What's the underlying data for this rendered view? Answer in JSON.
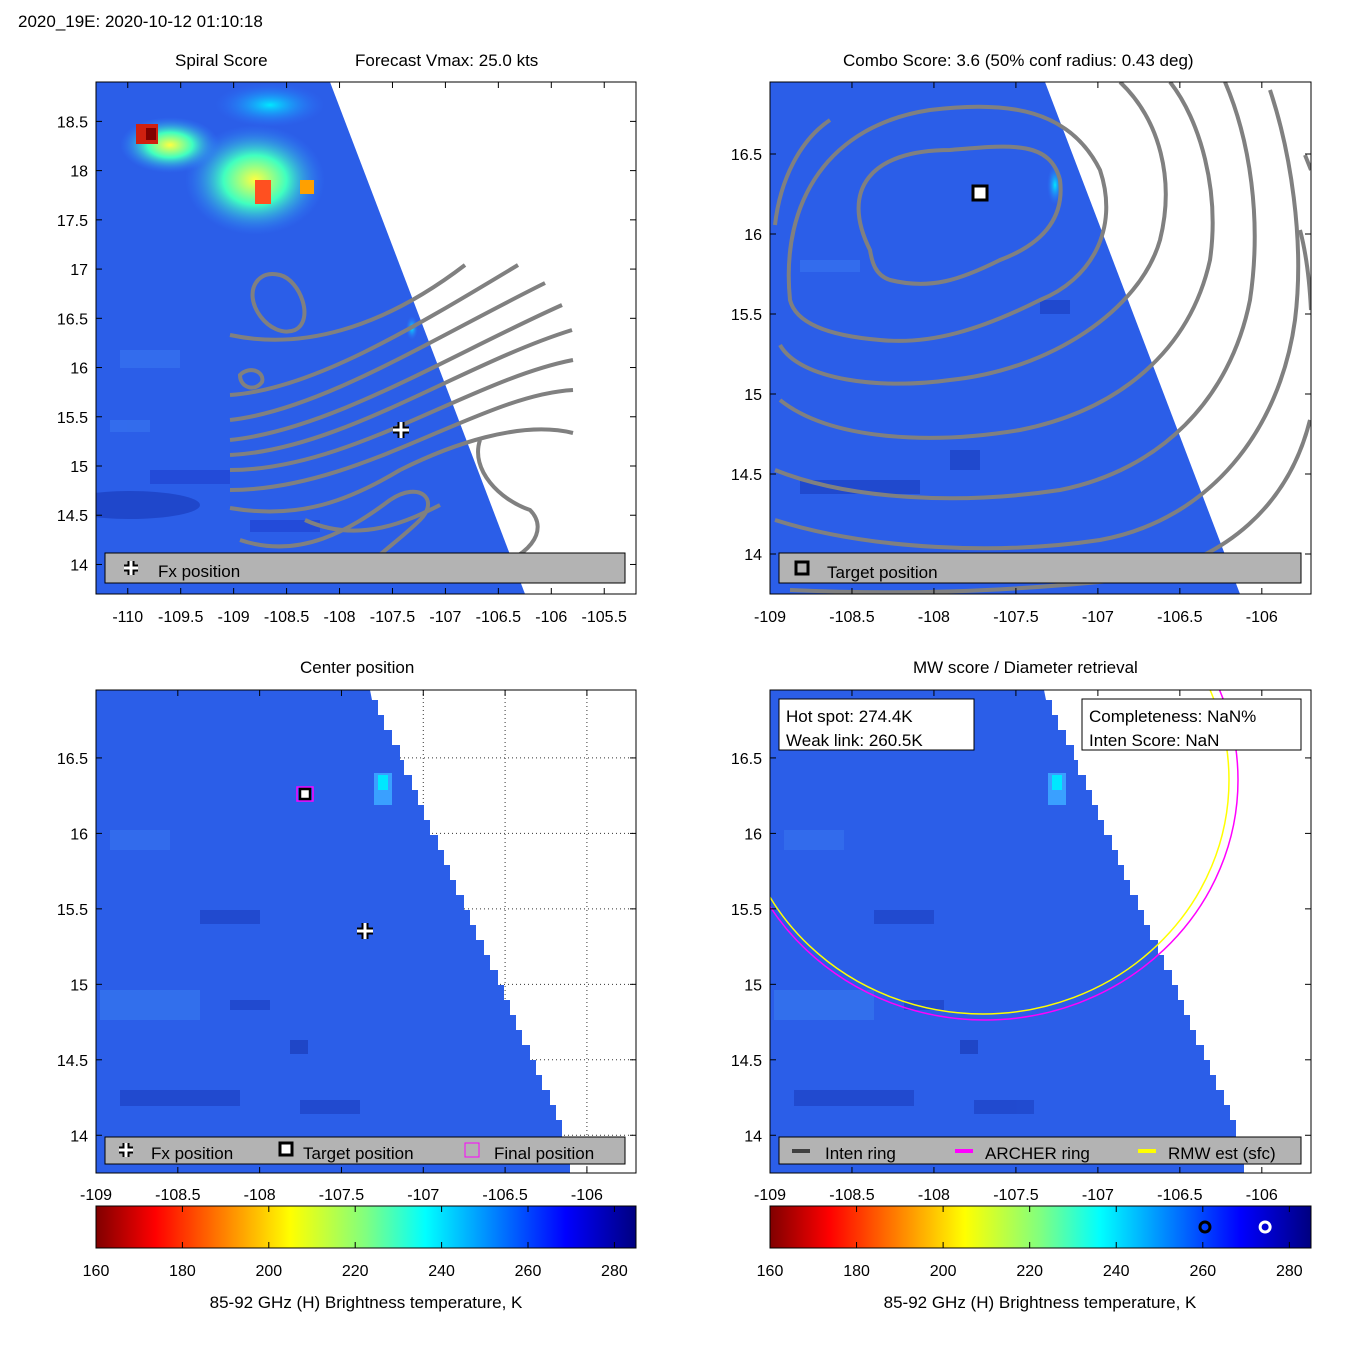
{
  "figure_title": "2020_19E: 2020-10-12 01:10:18",
  "colorbar_label": "85-92 GHz (H) Brightness temperature, K",
  "colors": {
    "swath_blue": "#1f4fe6",
    "contour_gray": "#808080",
    "legend_bg": "#b3b3b3",
    "archer_ring": "#ff00ff",
    "rmw_ring": "#ffff00",
    "inten_ring": "#404040"
  },
  "chart_data": [
    {
      "id": "spiral",
      "type": "heatmap",
      "title_left": "Spiral Score",
      "title_right": "Forecast Vmax: 25.0 kts",
      "xlim": [
        -110.3,
        -105.2
      ],
      "ylim": [
        13.7,
        18.9
      ],
      "xticks": [
        -110,
        -109.5,
        -109,
        -108.5,
        -108,
        -107.5,
        -107,
        -106.5,
        -106,
        -105.5
      ],
      "xtick_labels": [
        "-110",
        "-109.5",
        "-109",
        "-108.5",
        "-108",
        "-107.5",
        "-107",
        "-106.5",
        "-106",
        "-105.5"
      ],
      "yticks": [
        14,
        14.5,
        15,
        15.5,
        16,
        16.5,
        17,
        17.5,
        18,
        18.5
      ],
      "ytick_labels": [
        "14",
        "14.5",
        "15",
        "15.5",
        "16",
        "16.5",
        "17",
        "17.5",
        "18",
        "18.5"
      ],
      "fx_position": {
        "lon": -107.4,
        "lat": 15.33
      },
      "legend": [
        "Fx position"
      ]
    },
    {
      "id": "combo",
      "type": "heatmap",
      "title": "Combo Score: 3.6  (50% conf radius: 0.43 deg)",
      "xlim": [
        -109.0,
        -105.7
      ],
      "ylim": [
        13.75,
        16.95
      ],
      "xticks": [
        -109,
        -108.5,
        -108,
        -107.5,
        -107,
        -106.5,
        -106
      ],
      "xtick_labels": [
        "-109",
        "-108.5",
        "-108",
        "-107.5",
        "-107",
        "-106.5",
        "-106"
      ],
      "yticks": [
        14,
        14.5,
        15,
        15.5,
        16,
        16.5
      ],
      "ytick_labels": [
        "14",
        "14.5",
        "15",
        "15.5",
        "16",
        "16.5"
      ],
      "target_position": {
        "lon": -107.73,
        "lat": 16.23
      },
      "legend": [
        "Target position"
      ]
    },
    {
      "id": "center",
      "type": "heatmap",
      "title": "Center position",
      "xlim": [
        -109.0,
        -105.7
      ],
      "ylim": [
        13.75,
        16.95
      ],
      "xticks": [
        -109,
        -108.5,
        -108,
        -107.5,
        -107,
        -106.5,
        -106
      ],
      "xtick_labels": [
        "-109",
        "-108.5",
        "-108",
        "-107.5",
        "-107",
        "-106.5",
        "-106"
      ],
      "yticks": [
        14,
        14.5,
        15,
        15.5,
        16,
        16.5
      ],
      "ytick_labels": [
        "14",
        "14.5",
        "15",
        "15.5",
        "16",
        "16.5"
      ],
      "fx_position": {
        "lon": -107.4,
        "lat": 15.33
      },
      "target_position": {
        "lon": -107.73,
        "lat": 16.23
      },
      "final_position": {
        "lon": -107.73,
        "lat": 16.23
      },
      "legend": [
        "Fx position",
        "Target position",
        "Final position"
      ]
    },
    {
      "id": "mw",
      "type": "heatmap",
      "title": "MW score / Diameter retrieval",
      "xlim": [
        -109.0,
        -105.7
      ],
      "ylim": [
        13.75,
        16.95
      ],
      "xticks": [
        -109,
        -108.5,
        -108,
        -107.5,
        -107,
        -106.5,
        -106
      ],
      "xtick_labels": [
        "-109",
        "-108.5",
        "-108",
        "-107.5",
        "-107",
        "-106.5",
        "-106"
      ],
      "yticks": [
        14,
        14.5,
        15,
        15.5,
        16,
        16.5
      ],
      "ytick_labels": [
        "14",
        "14.5",
        "15",
        "15.5",
        "16",
        "16.5"
      ],
      "hot_spot": "Hot spot: 274.4K",
      "weak_link": "Weak link: 260.5K",
      "completeness": "Completeness: NaN%",
      "inten_score": "Inten Score: NaN",
      "hot_spot_K": 274.4,
      "weak_link_K": 260.5,
      "legend": [
        "Inten ring",
        "ARCHER ring",
        "RMW est (sfc)"
      ]
    }
  ],
  "colorbar": {
    "min": 160,
    "max": 285,
    "ticks": [
      160,
      180,
      200,
      220,
      240,
      260,
      280
    ],
    "tick_labels": [
      "160",
      "180",
      "200",
      "220",
      "240",
      "260",
      "280"
    ]
  }
}
